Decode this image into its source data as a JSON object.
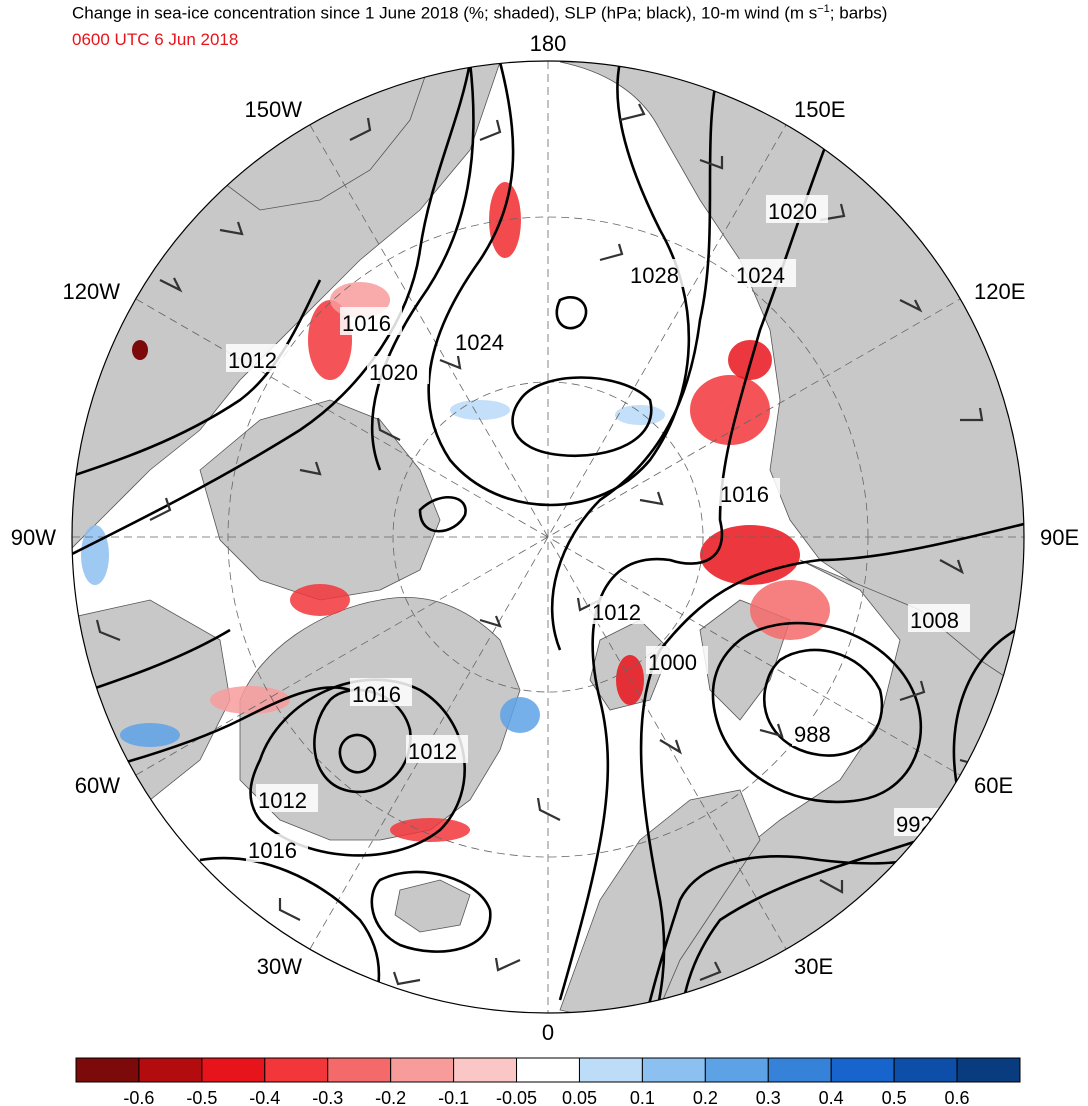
{
  "header": {
    "title_pre": "Change in sea-ice concentration since 1 June 2018 (%; shaded), SLP (hPa; black), 10-m wind (m s",
    "title_sup": "−1",
    "title_post": "; barbs)",
    "subtitle": "0600 UTC 6 Jun 2018"
  },
  "map": {
    "lon_labels": [
      "180",
      "150E",
      "120E",
      "90E",
      "60E",
      "30E",
      "0",
      "30W",
      "60W",
      "90W",
      "120W",
      "150W"
    ],
    "isobar_labels": [
      "1016",
      "1012",
      "1020",
      "1024",
      "1028",
      "1024",
      "1020",
      "1016",
      "1012",
      "1000",
      "1008",
      "988",
      "992",
      "1016",
      "1012",
      "1012",
      "1016"
    ],
    "colors": {
      "land": "#c8c8c8",
      "ocean": "#ffffff",
      "isobar": "#000000",
      "barb": "#333333"
    }
  },
  "colorbar": {
    "labels": [
      "-0.6",
      "-0.5",
      "-0.4",
      "-0.3",
      "-0.2",
      "-0.1",
      "-0.05",
      "0.05",
      "0.1",
      "0.2",
      "0.3",
      "0.4",
      "0.5",
      "0.6"
    ],
    "colors": [
      "#7d0a0a",
      "#b30c0f",
      "#e8141b",
      "#f2363a",
      "#f46a6a",
      "#f89b9b",
      "#fbc6c6",
      "#ffffff",
      "#bcdcf8",
      "#8cc0f0",
      "#5ea2e6",
      "#3582d8",
      "#1664cc",
      "#0c4ea8",
      "#083c7e"
    ]
  }
}
